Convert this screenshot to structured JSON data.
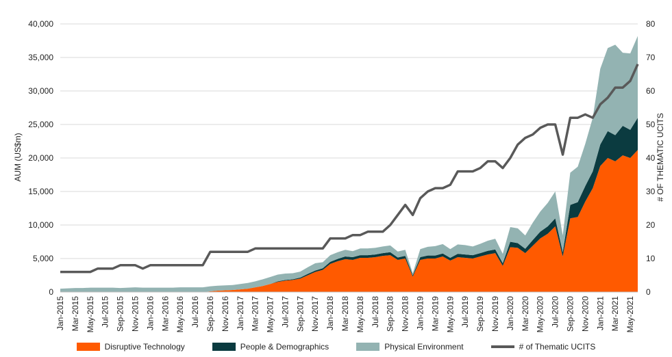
{
  "chart_data": {
    "type": "area",
    "x": [
      "Jan-2015",
      "Feb-2015",
      "Mar-2015",
      "Apr-2015",
      "May-2015",
      "Jun-2015",
      "Jul-2015",
      "Aug-2015",
      "Sep-2015",
      "Oct-2015",
      "Nov-2015",
      "Dec-2015",
      "Jan-2016",
      "Feb-2016",
      "Mar-2016",
      "Apr-2016",
      "May-2016",
      "Jun-2016",
      "Jul-2016",
      "Aug-2016",
      "Sep-2016",
      "Oct-2016",
      "Nov-2016",
      "Dec-2016",
      "Jan-2017",
      "Feb-2017",
      "Mar-2017",
      "Apr-2017",
      "May-2017",
      "Jun-2017",
      "Jul-2017",
      "Aug-2017",
      "Sep-2017",
      "Oct-2017",
      "Nov-2017",
      "Dec-2017",
      "Jan-2018",
      "Feb-2018",
      "Mar-2018",
      "Apr-2018",
      "May-2018",
      "Jun-2018",
      "Jul-2018",
      "Aug-2018",
      "Sep-2018",
      "Oct-2018",
      "Nov-2018",
      "Dec-2018",
      "Jan-2019",
      "Feb-2019",
      "Mar-2019",
      "Apr-2019",
      "May-2019",
      "Jun-2019",
      "Jul-2019",
      "Aug-2019",
      "Sep-2019",
      "Oct-2019",
      "Nov-2019",
      "Dec-2019",
      "Jan-2020",
      "Feb-2020",
      "Mar-2020",
      "Apr-2020",
      "May-2020",
      "Jun-2020",
      "Jul-2020",
      "Aug-2020",
      "Sep-2020",
      "Oct-2020",
      "Nov-2020",
      "Dec-2020",
      "Jan-2021",
      "Feb-2021",
      "Mar-2021",
      "Apr-2021",
      "May-2021",
      "Jun-2021"
    ],
    "tick_labels": [
      "Jan-2015",
      "Mar-2015",
      "May-2015",
      "Jul-2015",
      "Sep-2015",
      "Nov-2015",
      "Jan-2016",
      "Mar-2016",
      "May-2016",
      "Jul-2016",
      "Sep-2016",
      "Nov-2016",
      "Jan-2017",
      "Mar-2017",
      "May-2017",
      "Jul-2017",
      "Sep-2017",
      "Nov-2017",
      "Jan-2018",
      "Mar-2018",
      "May-2018",
      "Jul-2018",
      "Sep-2018",
      "Nov-2018",
      "Jan-2019",
      "Mar-2019",
      "May-2019",
      "Jul-2019",
      "Sep-2019",
      "Nov-2019",
      "Jan-2020",
      "Mar-2020",
      "May-2020",
      "Jul-2020",
      "Sep-2020",
      "Nov-2020",
      "Jan-2021",
      "Mar-2021",
      "May-2021"
    ],
    "ylabel": "AUM (US$m)",
    "y2label": "# OF THEMATIC UCITS",
    "ylim": [
      0,
      40000
    ],
    "y2lim": [
      0,
      80
    ],
    "yticks": [
      "0",
      "5,000",
      "10,000",
      "15,000",
      "20,000",
      "25,000",
      "30,000",
      "35,000",
      "40,000"
    ],
    "y2ticks": [
      "0",
      "10",
      "20",
      "30",
      "40",
      "50",
      "60",
      "70",
      "80"
    ],
    "grid": true,
    "legend_position": "bottom",
    "series": [
      {
        "name": "Disruptive Technology",
        "kind": "stacked-area",
        "color": "#ff5a00",
        "values": [
          0,
          0,
          0,
          0,
          0,
          0,
          0,
          0,
          0,
          0,
          0,
          0,
          0,
          0,
          0,
          0,
          0,
          0,
          0,
          0,
          100,
          200,
          250,
          300,
          400,
          500,
          700,
          900,
          1200,
          1500,
          1700,
          1800,
          2000,
          2500,
          3000,
          3300,
          4200,
          4600,
          4900,
          4800,
          5100,
          5100,
          5200,
          5400,
          5500,
          4800,
          5000,
          2300,
          4800,
          5000,
          5000,
          5300,
          4700,
          5200,
          5100,
          5000,
          5300,
          5600,
          5800,
          3900,
          6700,
          6600,
          5800,
          6900,
          8000,
          8700,
          9800,
          5300,
          11000,
          11200,
          13500,
          15500,
          18800,
          20000,
          19500,
          20400,
          20000,
          21200
        ]
      },
      {
        "name": "People & Demographics",
        "kind": "stacked-area",
        "color": "#0b3b40",
        "values": [
          0,
          0,
          0,
          0,
          0,
          0,
          0,
          0,
          0,
          0,
          0,
          0,
          0,
          0,
          0,
          0,
          0,
          0,
          0,
          0,
          0,
          0,
          0,
          0,
          0,
          0,
          0,
          0,
          0,
          100,
          100,
          100,
          150,
          200,
          200,
          250,
          300,
          350,
          400,
          400,
          400,
          400,
          400,
          400,
          450,
          350,
          400,
          200,
          400,
          450,
          450,
          450,
          400,
          500,
          500,
          500,
          500,
          550,
          550,
          400,
          800,
          700,
          650,
          850,
          1000,
          1100,
          1200,
          650,
          2000,
          2200,
          2300,
          2500,
          3200,
          4000,
          3900,
          4400,
          4200,
          4800
        ]
      },
      {
        "name": "Physical Environment",
        "kind": "stacked-area",
        "color": "#93b3b2",
        "values": [
          500,
          550,
          600,
          600,
          650,
          650,
          650,
          650,
          600,
          650,
          700,
          650,
          650,
          650,
          650,
          650,
          700,
          700,
          700,
          700,
          750,
          750,
          750,
          750,
          800,
          850,
          900,
          1000,
          1050,
          1000,
          950,
          900,
          900,
          1000,
          1100,
          900,
          1000,
          1000,
          1000,
          900,
          1000,
          1000,
          1000,
          1000,
          1000,
          900,
          900,
          300,
          1200,
          1300,
          1400,
          1400,
          1300,
          1400,
          1400,
          1300,
          1400,
          1500,
          1600,
          1400,
          2200,
          2200,
          2000,
          2600,
          3000,
          3500,
          4000,
          2500,
          4800,
          5300,
          6300,
          8000,
          11300,
          12400,
          13500,
          10900,
          11400,
          12200
        ]
      },
      {
        "name": "# of Thematic UCITS",
        "kind": "line",
        "axis": "right",
        "color": "#595959",
        "values": [
          6,
          6,
          6,
          6,
          6,
          7,
          7,
          7,
          8,
          8,
          8,
          7,
          8,
          8,
          8,
          8,
          8,
          8,
          8,
          8,
          12,
          12,
          12,
          12,
          12,
          12,
          13,
          13,
          13,
          13,
          13,
          13,
          13,
          13,
          13,
          13,
          16,
          16,
          16,
          17,
          17,
          18,
          18,
          18,
          20,
          23,
          26,
          23,
          28,
          30,
          31,
          31,
          32,
          36,
          36,
          36,
          37,
          39,
          39,
          37,
          40,
          44,
          46,
          47,
          49,
          50,
          50,
          41,
          52,
          52,
          53,
          52,
          56,
          58,
          61,
          61,
          63,
          68
        ]
      }
    ]
  }
}
